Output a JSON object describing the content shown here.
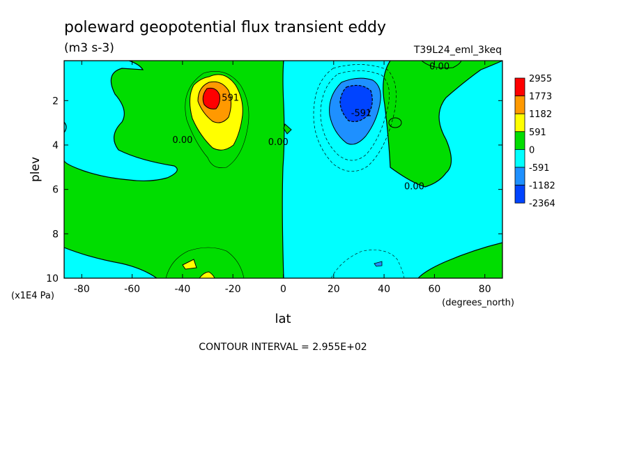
{
  "chart_data": {
    "type": "heatmap",
    "title": "poleward geopotential flux transient eddy",
    "units": "(m3 s-3)",
    "run_label": "T39L24_eml_3keq",
    "xlabel": "lat",
    "x_units": "(degrees_north)",
    "ylabel": "plev",
    "y_units": "(x1E4 Pa)",
    "xlim": [
      -87,
      87
    ],
    "ylim": [
      10,
      0.2
    ],
    "x_ticks": [
      -80,
      -60,
      -40,
      -20,
      0,
      20,
      40,
      60,
      80
    ],
    "x_tick_labels": [
      "-80",
      "-60",
      "-40",
      "-20",
      "0",
      "20",
      "40",
      "60",
      "80"
    ],
    "y_ticks": [
      2,
      4,
      6,
      8,
      10
    ],
    "y_tick_labels": [
      "2",
      "4",
      "6",
      "8",
      "10"
    ],
    "contour_interval_text": "CONTOUR INTERVAL = 2.955E+02",
    "contour_labels": [
      {
        "text": "0.00",
        "x": -40,
        "y": 3.9
      },
      {
        "text": "0.00",
        "x": -2,
        "y": 4.0
      },
      {
        "text": "591",
        "x": -21,
        "y": 2.0
      },
      {
        "text": "-591",
        "x": 31,
        "y": 2.7
      },
      {
        "text": "0.00",
        "x": 52,
        "y": 6.0
      },
      {
        "text": "0.00",
        "x": 62,
        "y": 0.6
      }
    ],
    "legend": {
      "levels": [
        "2955",
        "1773",
        "1182",
        "591",
        "0",
        "-591",
        "-1182",
        "-2364"
      ],
      "colors": [
        "#ff0000",
        "#ff9900",
        "#ffff00",
        "#00dd00",
        "#00ffff",
        "#1e90ff",
        "#0044ff"
      ]
    },
    "field_features": [
      {
        "sign": "positive",
        "peak": 2955,
        "lat": -30,
        "plev": 1.9
      },
      {
        "sign": "negative",
        "peak": -2364,
        "lat": 30,
        "plev": 2.1
      },
      {
        "sign": "positive",
        "peak": 591,
        "lat": -30,
        "plev": 9.4
      },
      {
        "sign": "negative",
        "peak": -591,
        "lat": 32,
        "plev": 9.3
      }
    ]
  }
}
